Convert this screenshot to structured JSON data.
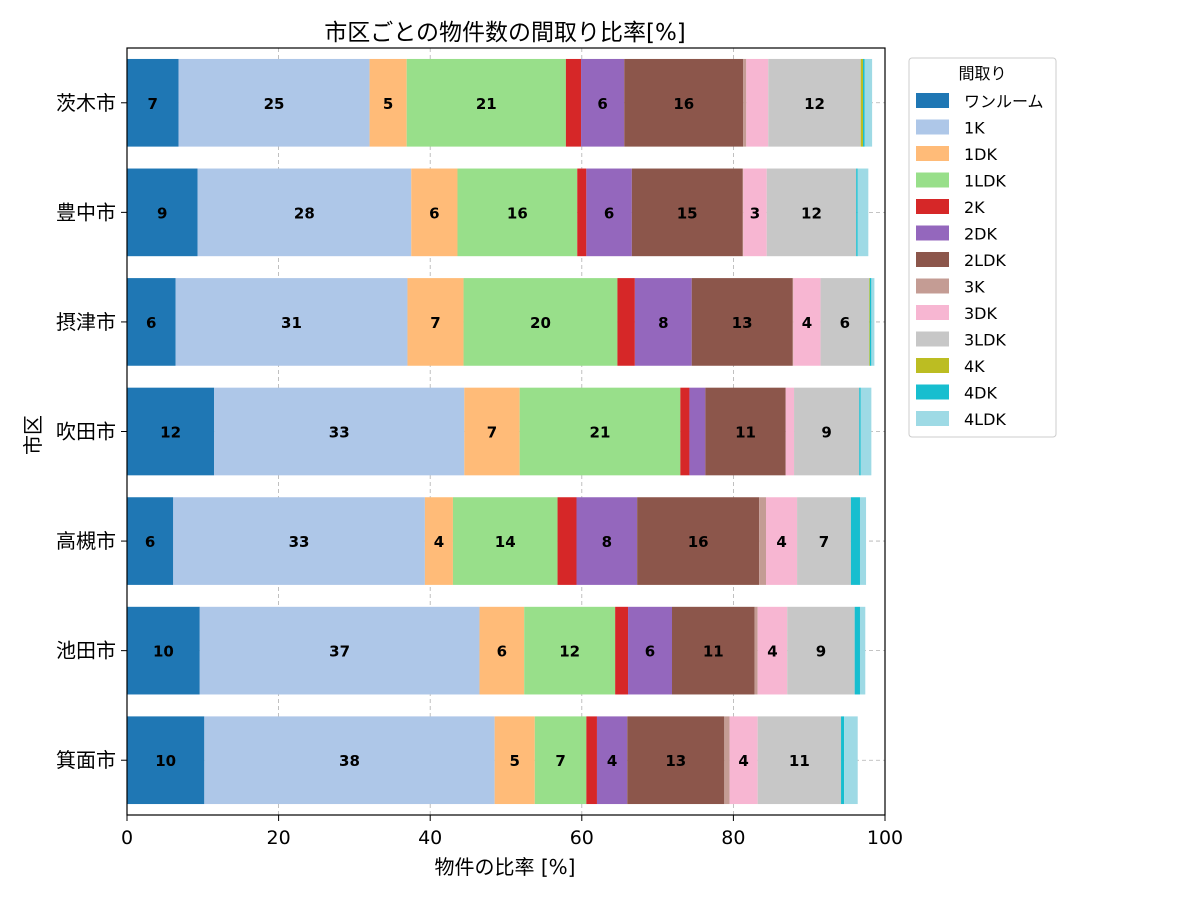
{
  "chart_data": {
    "type": "bar",
    "orientation": "horizontal",
    "stacked": true,
    "title": "市区ごとの物件数の間取り比率[%]",
    "xlabel": "物件の比率 [%]",
    "ylabel": "市区",
    "xlim": [
      0,
      100
    ],
    "xticks": [
      0,
      20,
      40,
      60,
      80,
      100
    ],
    "grid": true,
    "legend": {
      "title": "間取り",
      "placement": "outside-top-right"
    },
    "categories": [
      "茨木市",
      "豊中市",
      "摂津市",
      "吹田市",
      "高槻市",
      "池田市",
      "箕面市"
    ],
    "series": [
      {
        "name": "ワンルーム",
        "color": "#1f77b4",
        "values": [
          6.8,
          9.3,
          6.4,
          11.5,
          6.1,
          9.6,
          10.2
        ]
      },
      {
        "name": "1K",
        "color": "#aec7e8",
        "values": [
          25.2,
          28.2,
          30.6,
          33.0,
          33.2,
          36.9,
          38.3
        ]
      },
      {
        "name": "1DK",
        "color": "#ffbb78",
        "values": [
          4.9,
          6.1,
          7.4,
          7.3,
          3.7,
          5.9,
          5.3
        ]
      },
      {
        "name": "1LDK",
        "color": "#98df8a",
        "values": [
          21.0,
          15.8,
          20.3,
          21.2,
          13.8,
          12.0,
          6.8
        ]
      },
      {
        "name": "2K",
        "color": "#d62728",
        "values": [
          2.0,
          1.2,
          2.3,
          1.2,
          2.5,
          1.7,
          1.4
        ]
      },
      {
        "name": "2DK",
        "color": "#9467bd",
        "values": [
          5.7,
          6.0,
          7.5,
          2.1,
          8.0,
          5.8,
          4.0
        ]
      },
      {
        "name": "2LDK",
        "color": "#8c564b",
        "values": [
          15.7,
          14.6,
          13.3,
          10.6,
          16.1,
          10.9,
          12.8
        ]
      },
      {
        "name": "3K",
        "color": "#c49c94",
        "values": [
          0.4,
          0.1,
          0.1,
          0.0,
          0.9,
          0.4,
          0.7
        ]
      },
      {
        "name": "3DK",
        "color": "#f7b6d2",
        "values": [
          2.9,
          3.1,
          3.6,
          1.1,
          4.1,
          3.9,
          3.7
        ]
      },
      {
        "name": "3LDK",
        "color": "#c7c7c7",
        "values": [
          12.2,
          11.8,
          6.4,
          8.6,
          7.1,
          8.9,
          11.0
        ]
      },
      {
        "name": "4K",
        "color": "#bcbd22",
        "values": [
          0.3,
          0.0,
          0.1,
          0.0,
          0.0,
          0.0,
          0.0
        ]
      },
      {
        "name": "4DK",
        "color": "#17becf",
        "values": [
          0.2,
          0.2,
          0.2,
          0.2,
          1.2,
          0.7,
          0.4
        ]
      },
      {
        "name": "4LDK",
        "color": "#9edae5",
        "values": [
          1.0,
          1.4,
          0.4,
          1.4,
          0.8,
          0.7,
          1.8
        ]
      }
    ],
    "data_labels_min": 3
  }
}
